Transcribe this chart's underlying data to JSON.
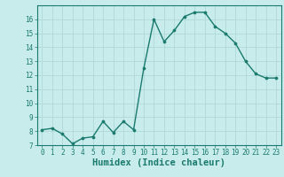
{
  "x": [
    0,
    1,
    2,
    3,
    4,
    5,
    6,
    7,
    8,
    9,
    10,
    11,
    12,
    13,
    14,
    15,
    16,
    17,
    18,
    19,
    20,
    21,
    22,
    23
  ],
  "y": [
    8.1,
    8.2,
    7.8,
    7.1,
    7.5,
    7.6,
    8.7,
    7.9,
    8.7,
    8.1,
    12.5,
    16.0,
    14.4,
    15.2,
    16.2,
    16.5,
    16.5,
    15.5,
    15.0,
    14.3,
    13.0,
    12.1,
    11.8,
    11.8
  ],
  "line_color": "#1a7a6e",
  "marker": "o",
  "marker_size": 2.2,
  "bg_color": "#c8ecec",
  "grid_color": "#b0d8d8",
  "xlabel": "Humidex (Indice chaleur)",
  "xlim": [
    -0.5,
    23.5
  ],
  "ylim": [
    7,
    17
  ],
  "yticks": [
    7,
    8,
    9,
    10,
    11,
    12,
    13,
    14,
    15,
    16
  ],
  "xticks": [
    0,
    1,
    2,
    3,
    4,
    5,
    6,
    7,
    8,
    9,
    10,
    11,
    12,
    13,
    14,
    15,
    16,
    17,
    18,
    19,
    20,
    21,
    22,
    23
  ],
  "tick_fontsize": 5.5,
  "xlabel_fontsize": 7.5,
  "label_color": "#1a7a6e",
  "spine_color": "#1a7a6e",
  "linewidth": 1.0
}
